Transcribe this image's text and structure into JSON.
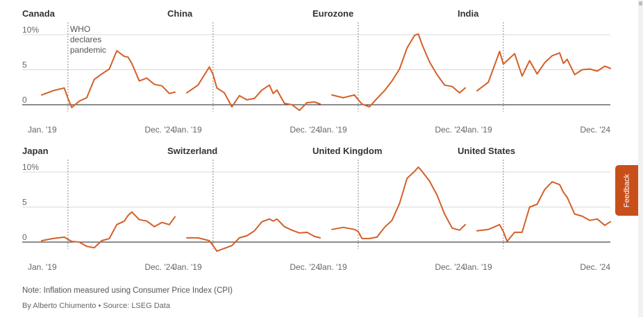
{
  "chart_data": {
    "type": "line",
    "units": "%",
    "x_start_label": "Jan. '19",
    "x_end_label": "Dec. '24",
    "ylim": [
      -1.5,
      11
    ],
    "y_ticks": [
      {
        "value": 10,
        "label": "10%"
      },
      {
        "value": 5,
        "label": "5"
      },
      {
        "value": 0,
        "label": "0"
      }
    ],
    "event_line": {
      "date": "2020-03",
      "label_lines": [
        "WHO",
        "declares",
        "pandemic"
      ]
    },
    "x_months": [
      "2019-01",
      "2019-07",
      "2020-01",
      "2020-03",
      "2020-05",
      "2020-09",
      "2021-01",
      "2021-05",
      "2021-09",
      "2022-01",
      "2022-05",
      "2022-09",
      "2022-11",
      "2023-01",
      "2023-05",
      "2023-09",
      "2024-01",
      "2024-05",
      "2024-09",
      "2024-12"
    ],
    "panels": [
      {
        "name": "Canada",
        "values": [
          1.4,
          2.0,
          2.4,
          0.9,
          -0.4,
          0.5,
          1.0,
          3.6,
          4.4,
          5.1,
          7.7,
          6.9,
          6.8,
          5.9,
          3.4,
          3.8,
          2.9,
          2.7,
          1.6,
          1.8
        ]
      },
      {
        "name": "China",
        "values": [
          1.7,
          2.8,
          5.4,
          4.3,
          2.4,
          1.7,
          -0.3,
          1.3,
          0.7,
          0.9,
          2.1,
          2.8,
          1.6,
          2.1,
          0.2,
          0.0,
          -0.8,
          0.3,
          0.4,
          0.1
        ]
      },
      {
        "name": "Eurozone",
        "values": [
          1.4,
          1.0,
          1.4,
          0.7,
          0.1,
          -0.3,
          0.9,
          2.0,
          3.4,
          5.1,
          8.1,
          9.9,
          10.1,
          8.6,
          6.1,
          4.3,
          2.8,
          2.6,
          1.7,
          2.4
        ]
      },
      {
        "name": "India",
        "values": [
          2.0,
          3.2,
          7.6,
          5.8,
          6.3,
          7.3,
          4.1,
          6.3,
          4.4,
          6.0,
          7.0,
          7.4,
          5.9,
          6.5,
          4.3,
          5.0,
          5.1,
          4.8,
          5.5,
          5.2
        ]
      },
      {
        "name": "Japan",
        "values": [
          0.2,
          0.5,
          0.7,
          0.4,
          0.1,
          0.0,
          -0.6,
          -0.8,
          0.2,
          0.5,
          2.5,
          3.0,
          3.8,
          4.3,
          3.2,
          3.0,
          2.2,
          2.8,
          2.5,
          3.6
        ]
      },
      {
        "name": "Switzerland",
        "values": [
          0.6,
          0.6,
          0.2,
          -0.5,
          -1.3,
          -0.9,
          -0.5,
          0.6,
          0.9,
          1.6,
          2.9,
          3.3,
          3.0,
          3.3,
          2.2,
          1.7,
          1.3,
          1.4,
          0.8,
          0.6
        ]
      },
      {
        "name": "United Kingdom",
        "values": [
          1.8,
          2.1,
          1.8,
          1.5,
          0.5,
          0.5,
          0.7,
          2.1,
          3.1,
          5.5,
          9.1,
          10.1,
          10.7,
          10.1,
          8.7,
          6.7,
          4.0,
          2.0,
          1.7,
          2.5
        ]
      },
      {
        "name": "United States",
        "values": [
          1.6,
          1.8,
          2.5,
          1.5,
          0.1,
          1.4,
          1.4,
          5.0,
          5.4,
          7.5,
          8.6,
          8.2,
          7.1,
          6.4,
          4.0,
          3.7,
          3.1,
          3.3,
          2.4,
          2.9
        ]
      }
    ]
  },
  "notes": {
    "note": "Note: Inflation measured using Consumer Price Index (CPI)",
    "byline": "By Alberto Chiumento • Source: LSEG Data"
  },
  "feedback": {
    "label": "Feedback"
  },
  "colors": {
    "line": "#d35f27",
    "axis": "#1a1a1a",
    "grid": "#d9d9d9",
    "event": "#888888",
    "feedback": "#c94f1a"
  }
}
